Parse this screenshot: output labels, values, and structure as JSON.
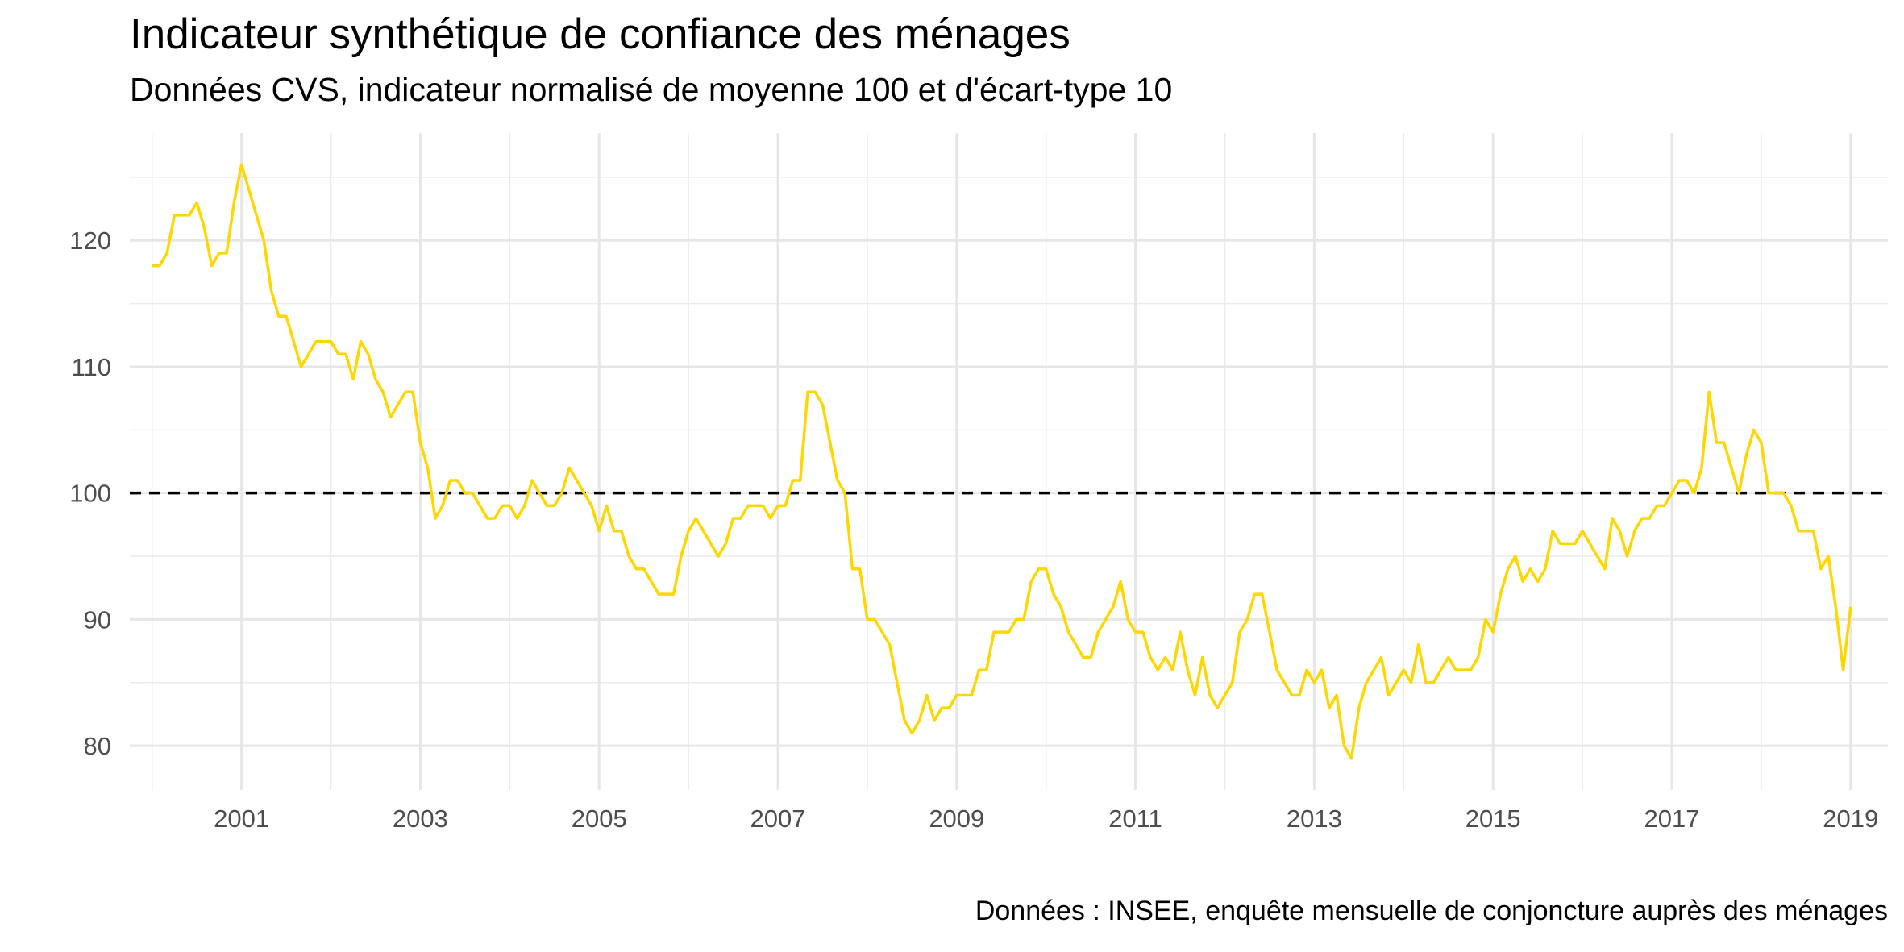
{
  "chart_data": {
    "type": "line",
    "title": "Indicateur synthétique de confiance des ménages",
    "subtitle": "Données CVS, indicateur normalisé de moyenne 100 et d'écart-type 10",
    "caption": "Données : INSEE, enquête mensuelle de conjoncture auprès des ménages",
    "xlabel": "",
    "ylabel": "",
    "x_ticks": [
      "2001",
      "2003",
      "2005",
      "2007",
      "2009",
      "2011",
      "2013",
      "2015",
      "2017",
      "2019"
    ],
    "y_ticks": [
      80,
      90,
      100,
      110,
      120
    ],
    "xlim": [
      "1999-10",
      "2019-06"
    ],
    "ylim": [
      76.5,
      128.5
    ],
    "reference_line": {
      "y": 100,
      "style": "dashed",
      "color": "#000000"
    },
    "grid": true,
    "line_color": "#FFD700",
    "series": [
      {
        "start": "2000-01",
        "frequency": "monthly",
        "values": [
          118,
          118,
          119,
          122,
          122,
          122,
          123,
          121,
          118,
          119,
          119,
          123,
          126,
          124,
          122,
          120,
          116,
          114,
          114,
          112,
          110,
          111,
          112,
          112,
          112,
          111,
          111,
          109,
          112,
          111,
          109,
          108,
          106,
          107,
          108,
          108,
          104,
          102,
          98,
          99,
          101,
          101,
          100,
          100,
          99,
          98,
          98,
          99,
          99,
          98,
          99,
          101,
          100,
          99,
          99,
          100,
          102,
          101,
          100,
          99,
          97,
          99,
          97,
          97,
          95,
          94,
          94,
          93,
          92,
          92,
          92,
          95,
          97,
          98,
          97,
          96,
          95,
          96,
          98,
          98,
          99,
          99,
          99,
          98,
          99,
          99,
          101,
          101,
          108,
          108,
          107,
          104,
          101,
          100,
          94,
          94,
          90,
          90,
          89,
          88,
          85,
          82,
          81,
          82,
          84,
          82,
          83,
          83,
          84,
          84,
          84,
          86,
          86,
          89,
          89,
          89,
          90,
          90,
          93,
          94,
          94,
          92,
          91,
          89,
          88,
          87,
          87,
          89,
          90,
          91,
          93,
          90,
          89,
          89,
          87,
          86,
          87,
          86,
          89,
          86,
          84,
          87,
          84,
          83,
          84,
          85,
          89,
          90,
          92,
          92,
          89,
          86,
          85,
          84,
          84,
          86,
          85,
          86,
          83,
          84,
          80,
          79,
          83,
          85,
          86,
          87,
          84,
          85,
          86,
          85,
          88,
          85,
          85,
          86,
          87,
          86,
          86,
          86,
          87,
          90,
          89,
          92,
          94,
          95,
          93,
          94,
          93,
          94,
          97,
          96,
          96,
          96,
          97,
          96,
          95,
          94,
          98,
          97,
          95,
          97,
          98,
          98,
          99,
          99,
          100,
          101,
          101,
          100,
          102,
          108,
          104,
          104,
          102,
          100,
          103,
          105,
          104,
          100,
          100,
          100,
          99,
          97,
          97,
          97,
          94,
          95,
          91,
          86,
          91
        ]
      }
    ]
  }
}
